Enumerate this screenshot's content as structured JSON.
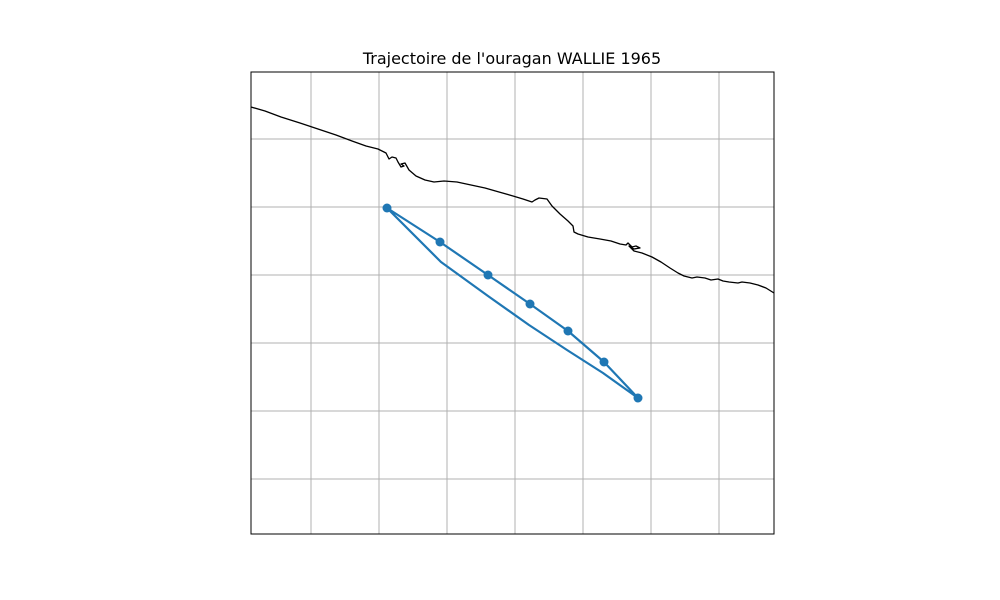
{
  "map": {
    "title": "Trajectoire de l'ouragan WALLIE 1965",
    "grid": true,
    "colors": {
      "track": "#1f77b4",
      "coastline": "#000000",
      "gridline": "#b0b0b0",
      "frame": "#000000",
      "background": "#ffffff"
    }
  },
  "chart_data": {
    "type": "scatter",
    "title": "Trajectoire de l'ouragan WALLIE 1965",
    "xlabel": "",
    "ylabel": "",
    "grid": true,
    "legend": "none",
    "track_point_count": 12,
    "note_units": "map track shown without printed coordinate labels"
  }
}
